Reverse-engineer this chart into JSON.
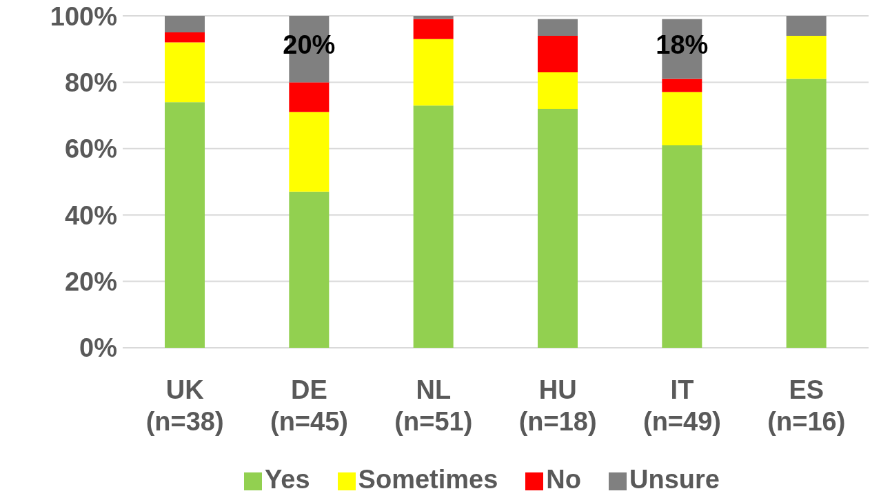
{
  "chart_data": {
    "type": "bar",
    "stacked": true,
    "categories": [
      "UK\n(n=38)",
      "DE\n(n=45)",
      "NL\n(n=51)",
      "HU\n(n=18)",
      "IT\n(n=49)",
      "ES\n(n=16)"
    ],
    "series": [
      {
        "name": "Yes",
        "color": "#92d050",
        "values": [
          74,
          47,
          73,
          72,
          61,
          81
        ]
      },
      {
        "name": "Sometimes",
        "color": "#ffff00",
        "values": [
          18,
          24,
          20,
          11,
          16,
          13
        ]
      },
      {
        "name": "No",
        "color": "#ff0000",
        "values": [
          3,
          9,
          6,
          11,
          4,
          0
        ]
      },
      {
        "name": "Unsure",
        "color": "#808080",
        "values": [
          5,
          20,
          1,
          5,
          18,
          6
        ],
        "value_labels": [
          null,
          "20%",
          null,
          null,
          "18%",
          null
        ]
      }
    ],
    "ylim": [
      0,
      100
    ],
    "yticks": [
      {
        "value": 0,
        "label": "0%"
      },
      {
        "value": 20,
        "label": "20%"
      },
      {
        "value": 40,
        "label": "40%"
      },
      {
        "value": 60,
        "label": "60%"
      },
      {
        "value": 80,
        "label": "80%"
      },
      {
        "value": 100,
        "label": "100%"
      }
    ],
    "grid": "y",
    "legend": "bottom"
  }
}
